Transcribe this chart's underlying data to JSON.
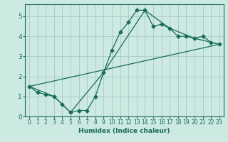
{
  "title": "",
  "xlabel": "Humidex (Indice chaleur)",
  "ylabel": "",
  "xlim": [
    -0.5,
    23.5
  ],
  "ylim": [
    0,
    5.6
  ],
  "bg_color": "#cce9e2",
  "line_color": "#1a6b5a",
  "grid_color": "#aacfc8",
  "line1_x": [
    0,
    1,
    2,
    3,
    4,
    5,
    6,
    7,
    8,
    9,
    10,
    11,
    12,
    13,
    14,
    15,
    16,
    17,
    18,
    19,
    20,
    21,
    22,
    23
  ],
  "line1_y": [
    1.5,
    1.2,
    1.1,
    1.0,
    0.6,
    0.2,
    0.3,
    0.3,
    1.0,
    2.2,
    3.3,
    4.2,
    4.7,
    5.3,
    5.3,
    4.5,
    4.6,
    4.4,
    4.0,
    4.0,
    3.9,
    4.0,
    3.7,
    3.6
  ],
  "line2_x": [
    0,
    3,
    5,
    9,
    14,
    17,
    20,
    22,
    23
  ],
  "line2_y": [
    1.5,
    1.0,
    0.2,
    2.2,
    5.3,
    4.4,
    3.9,
    3.7,
    3.6
  ],
  "line3_x": [
    0,
    23
  ],
  "line3_y": [
    1.5,
    3.6
  ],
  "xticks": [
    0,
    1,
    2,
    3,
    4,
    5,
    6,
    7,
    8,
    9,
    10,
    11,
    12,
    13,
    14,
    15,
    16,
    17,
    18,
    19,
    20,
    21,
    22,
    23
  ],
  "yticks": [
    0,
    1,
    2,
    3,
    4,
    5
  ]
}
